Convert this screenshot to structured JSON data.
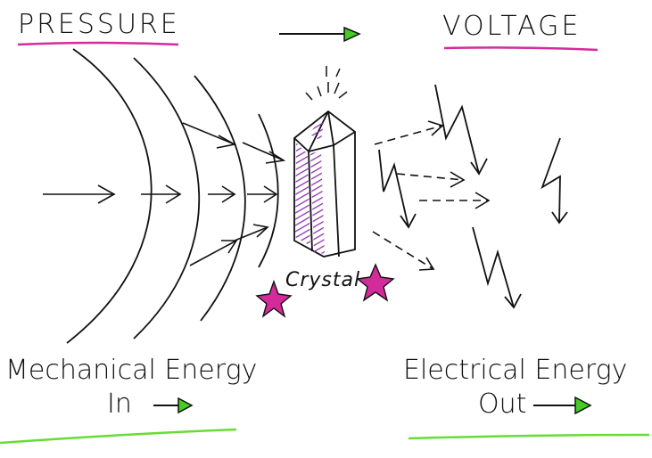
{
  "title_left": "PRESSURE",
  "title_right": "VOLTAGE",
  "crystal_label": "Crystal",
  "mechanical_line1": "Mechanical Energy",
  "mechanical_line2": "In",
  "electrical_line1": "Electrical Energy",
  "electrical_line2": "Out",
  "colors": {
    "ink": "#111111",
    "magenta": "#d42a9a",
    "green": "#44cc22",
    "purple": "#8a2bb0"
  },
  "icons": [
    "arrow-icon",
    "crystal-icon",
    "star-icon",
    "lightning-bolt-icon"
  ]
}
